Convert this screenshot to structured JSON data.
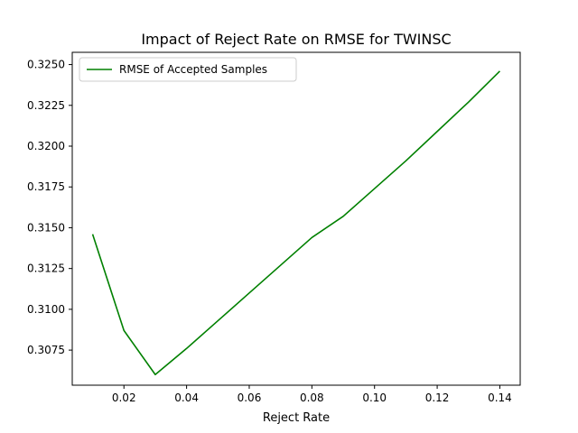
{
  "chart_data": {
    "type": "line",
    "title": "Impact of Reject Rate on RMSE for TWINSC",
    "xlabel": "Reject Rate",
    "ylabel": "",
    "xlim": [
      0.0035,
      0.1465
    ],
    "ylim": [
      0.30535,
      0.32575
    ],
    "x_ticks": [
      0.02,
      0.04,
      0.06,
      0.08,
      0.1,
      0.12,
      0.14
    ],
    "x_tick_labels": [
      "0.02",
      "0.04",
      "0.06",
      "0.08",
      "0.10",
      "0.12",
      "0.14"
    ],
    "y_ticks": [
      0.3075,
      0.31,
      0.3125,
      0.315,
      0.3175,
      0.32,
      0.3225,
      0.325
    ],
    "y_tick_labels": [
      "0.3075",
      "0.3100",
      "0.3125",
      "0.3150",
      "0.3175",
      "0.3200",
      "0.3225",
      "0.3250"
    ],
    "grid": false,
    "legend_position": "top-left",
    "series": [
      {
        "name": "RMSE of Accepted Samples",
        "color": "#008000",
        "x": [
          0.01,
          0.02,
          0.03,
          0.04,
          0.05,
          0.06,
          0.07,
          0.08,
          0.09,
          0.1,
          0.11,
          0.12,
          0.13,
          0.14
        ],
        "y": [
          0.3146,
          0.3087,
          0.306,
          0.3076,
          0.3093,
          0.311,
          0.3127,
          0.3144,
          0.3157,
          0.3174,
          0.3191,
          0.3209,
          0.3227,
          0.3246
        ]
      }
    ]
  }
}
